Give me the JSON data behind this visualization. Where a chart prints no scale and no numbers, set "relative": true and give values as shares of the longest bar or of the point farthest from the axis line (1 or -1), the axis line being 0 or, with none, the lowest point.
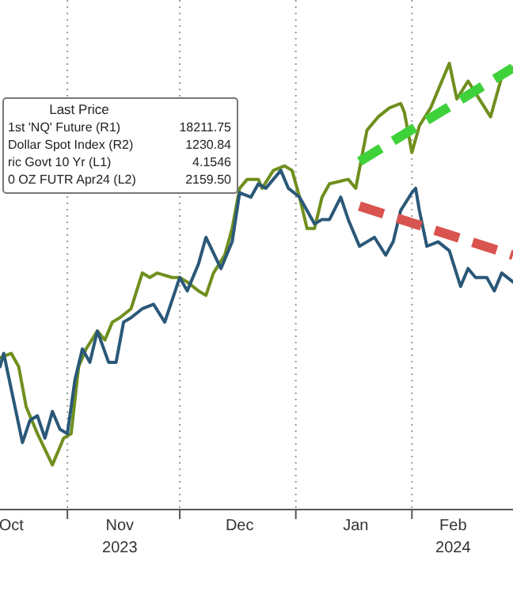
{
  "chart_data": {
    "type": "line",
    "relative": true,
    "grid": "x",
    "xlim": [
      "2023-10-14",
      "2024-02-28"
    ],
    "xticks": [
      {
        "value": "2023-11-01",
        "label": null
      },
      {
        "value": "2023-12-01",
        "label": null
      },
      {
        "value": "2024-01-01",
        "label": null
      },
      {
        "value": "2024-02-01",
        "label": null
      },
      {
        "value": "2023-10-17",
        "label": "Oct"
      },
      {
        "value": "2023-11-15",
        "label": "Nov\n2023"
      },
      {
        "value": "2023-12-17",
        "label": "Dec"
      },
      {
        "value": "2024-01-17",
        "label": "Jan"
      },
      {
        "value": "2024-02-12",
        "label": "Feb\n2024"
      }
    ],
    "annotations": [
      "Last Price",
      "1st 'NQ' Future (R1)",
      "18211.75",
      "Dollar Spot Index (R2)",
      "1230.84",
      "ric Govt 10 Yr (L1)",
      "4.1546",
      "0 OZ FUTR Apr24 (L2)",
      "2159.50"
    ],
    "series": [
      {
        "color": "#6f8f1e",
        "x": [
          "2023-10-14",
          "2023-10-17",
          "2023-10-19",
          "2023-10-21",
          "2023-10-24",
          "2023-10-28",
          "2023-10-31",
          "2023-11-02",
          "2023-11-04",
          "2023-11-06",
          "2023-11-09",
          "2023-11-11",
          "2023-11-13",
          "2023-11-15",
          "2023-11-18",
          "2023-11-21",
          "2023-11-23",
          "2023-11-25",
          "2023-11-29",
          "2023-12-01",
          "2023-12-03",
          "2023-12-06",
          "2023-12-08",
          "2023-12-10",
          "2023-12-13",
          "2023-12-15",
          "2023-12-17",
          "2023-12-19",
          "2023-12-22",
          "2023-12-23",
          "2023-12-26",
          "2023-12-29",
          "2023-12-31",
          "2024-01-02",
          "2024-01-04",
          "2024-01-06",
          "2024-01-08",
          "2024-01-10",
          "2024-01-15",
          "2024-01-17",
          "2024-01-20",
          "2024-01-23",
          "2024-01-26",
          "2024-01-29",
          "2024-01-30",
          "2024-02-01",
          "2024-02-03",
          "2024-02-06",
          "2024-02-09",
          "2024-02-11",
          "2024-02-13",
          "2024-02-16",
          "2024-02-19",
          "2024-02-22",
          "2024-02-25",
          "2024-02-28"
        ],
        "values": [
          0.34,
          0.35,
          0.32,
          0.23,
          0.17,
          0.1,
          0.16,
          0.17,
          0.32,
          0.36,
          0.4,
          0.38,
          0.42,
          0.43,
          0.45,
          0.53,
          0.52,
          0.53,
          0.52,
          0.52,
          0.51,
          0.49,
          0.48,
          0.53,
          0.57,
          0.63,
          0.72,
          0.74,
          0.74,
          0.72,
          0.76,
          0.77,
          0.76,
          0.7,
          0.63,
          0.63,
          0.7,
          0.73,
          0.74,
          0.72,
          0.85,
          0.88,
          0.9,
          0.91,
          0.89,
          0.8,
          0.86,
          0.9,
          0.96,
          1,
          0.92,
          0.96,
          0.92,
          0.88,
          0.97,
          0.99
        ]
      },
      {
        "color": "#2a5878",
        "x": [
          "2023-10-14",
          "2023-10-15",
          "2023-10-17",
          "2023-10-20",
          "2023-10-22",
          "2023-10-24",
          "2023-10-26",
          "2023-10-28",
          "2023-10-30",
          "2023-11-01",
          "2023-11-03",
          "2023-11-05",
          "2023-11-07",
          "2023-11-09",
          "2023-11-12",
          "2023-11-14",
          "2023-11-16",
          "2023-11-18",
          "2023-11-21",
          "2023-11-24",
          "2023-11-27",
          "2023-12-01",
          "2023-12-03",
          "2023-12-06",
          "2023-12-08",
          "2023-12-12",
          "2023-12-15",
          "2023-12-17",
          "2023-12-20",
          "2023-12-22",
          "2023-12-24",
          "2023-12-26",
          "2023-12-28",
          "2023-12-30",
          "2024-01-02",
          "2024-01-06",
          "2024-01-08",
          "2024-01-10",
          "2024-01-13",
          "2024-01-15",
          "2024-01-18",
          "2024-01-20",
          "2024-01-22",
          "2024-01-25",
          "2024-01-27",
          "2024-01-29",
          "2024-02-01",
          "2024-02-02",
          "2024-02-03",
          "2024-02-05",
          "2024-02-08",
          "2024-02-11",
          "2024-02-14",
          "2024-02-16",
          "2024-02-18",
          "2024-02-21",
          "2024-02-23",
          "2024-02-25",
          "2024-02-28"
        ],
        "values": [
          0.32,
          0.35,
          0.27,
          0.15,
          0.2,
          0.21,
          0.16,
          0.22,
          0.18,
          0.17,
          0.29,
          0.36,
          0.33,
          0.4,
          0.33,
          0.33,
          0.42,
          0.43,
          0.45,
          0.46,
          0.42,
          0.52,
          0.49,
          0.55,
          0.61,
          0.54,
          0.6,
          0.71,
          0.7,
          0.73,
          0.72,
          0.74,
          0.76,
          0.72,
          0.7,
          0.64,
          0.65,
          0.65,
          0.7,
          0.65,
          0.59,
          0.6,
          0.61,
          0.57,
          0.6,
          0.67,
          0.71,
          0.72,
          0.67,
          0.59,
          0.6,
          0.58,
          0.5,
          0.54,
          0.52,
          0.52,
          0.49,
          0.53,
          0.51
        ]
      },
      {
        "color": "#3fd13a",
        "line_style": "dashed",
        "x": [
          "2024-01-18",
          "2024-02-28"
        ],
        "values": [
          0.78,
          0.99
        ]
      },
      {
        "color": "#d9534f",
        "line_style": "dashed",
        "x": [
          "2024-01-18",
          "2024-02-28"
        ],
        "values": [
          0.68,
          0.57
        ]
      }
    ]
  }
}
